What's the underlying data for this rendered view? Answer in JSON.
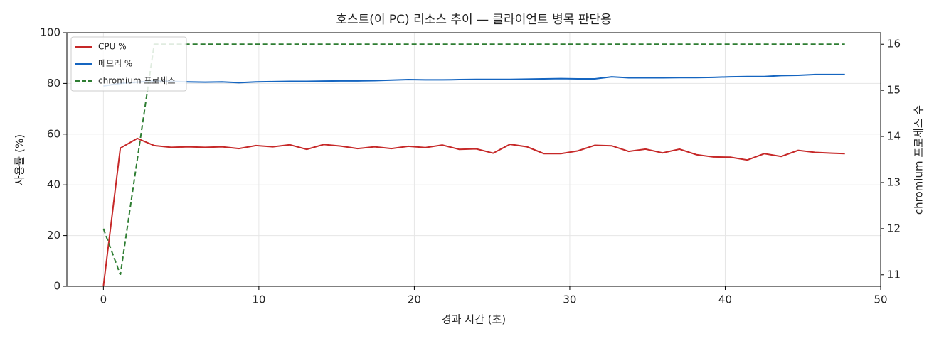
{
  "chart_data": {
    "type": "line",
    "title": "호스트(이 PC) 리소스 추이 — 클라이언트 병목 판단용",
    "x_label": "경과 시간 (초)",
    "y_label": "사용률 (%)",
    "y2_label": "chromium 프로세스 수",
    "x": [
      0,
      1.09,
      2.18,
      3.27,
      4.36,
      5.45,
      6.54,
      7.63,
      8.72,
      9.81,
      10.9,
      11.99,
      13.08,
      14.17,
      15.26,
      16.35,
      17.44,
      18.53,
      19.62,
      20.71,
      21.8,
      22.89,
      23.98,
      25.07,
      26.16,
      27.25,
      28.34,
      29.43,
      30.52,
      31.61,
      32.7,
      33.79,
      34.88,
      35.97,
      37.06,
      38.15,
      39.24,
      40.33,
      41.42,
      42.51,
      43.6,
      44.69,
      45.78,
      46.87,
      47.7
    ],
    "series": [
      {
        "name": "CPU %",
        "color": "#c62828",
        "linestyle": "solid",
        "axis": "y",
        "values": [
          0,
          54.5,
          58.3,
          55.5,
          54.8,
          55,
          54.8,
          55,
          54.3,
          55.5,
          55,
          55.8,
          54,
          55.9,
          55.3,
          54.3,
          55,
          54.3,
          55.2,
          54.7,
          55.7,
          54,
          54.2,
          52.5,
          56,
          55,
          52.3,
          52.3,
          53.4,
          55.6,
          55.4,
          53.2,
          54.1,
          52.6,
          54.1,
          51.9,
          51,
          50.9,
          49.8,
          52.3,
          51.2,
          53.6,
          52.8,
          52.5,
          52.3
        ]
      },
      {
        "name": "메모리 %",
        "color": "#1565c0",
        "linestyle": "solid",
        "axis": "y",
        "values": [
          79,
          80,
          80.5,
          81,
          80.8,
          80.6,
          80.5,
          80.6,
          80.3,
          80.6,
          80.7,
          80.8,
          80.8,
          80.9,
          81,
          81,
          81.1,
          81.3,
          81.5,
          81.4,
          81.4,
          81.5,
          81.6,
          81.6,
          81.6,
          81.7,
          81.8,
          81.9,
          81.8,
          81.8,
          82.6,
          82.2,
          82.2,
          82.2,
          82.3,
          82.3,
          82.4,
          82.6,
          82.7,
          82.7,
          83.1,
          83.2,
          83.5,
          83.5,
          83.5
        ]
      },
      {
        "name": "chromium 프로세스",
        "color": "#2e7d32",
        "linestyle": "dashed",
        "axis": "y2",
        "values": [
          12,
          11,
          13.5,
          16,
          16,
          16,
          16,
          16,
          16,
          16,
          16,
          16,
          16,
          16,
          16,
          16,
          16,
          16,
          16,
          16,
          16,
          16,
          16,
          16,
          16,
          16,
          16,
          16,
          16,
          16,
          16,
          16,
          16,
          16,
          16,
          16,
          16,
          16,
          16,
          16,
          16,
          16,
          16,
          16,
          16
        ]
      }
    ],
    "xlim": [
      -2.35,
      50
    ],
    "xticks": [
      0,
      10,
      20,
      30,
      40,
      50
    ],
    "ylim": [
      0,
      100
    ],
    "yticks": [
      0,
      20,
      40,
      60,
      80,
      100
    ],
    "y2lim": [
      10.75,
      16.25
    ],
    "y2ticks": [
      11,
      12,
      13,
      14,
      15,
      16
    ],
    "grid": true,
    "legend": "upper left"
  }
}
